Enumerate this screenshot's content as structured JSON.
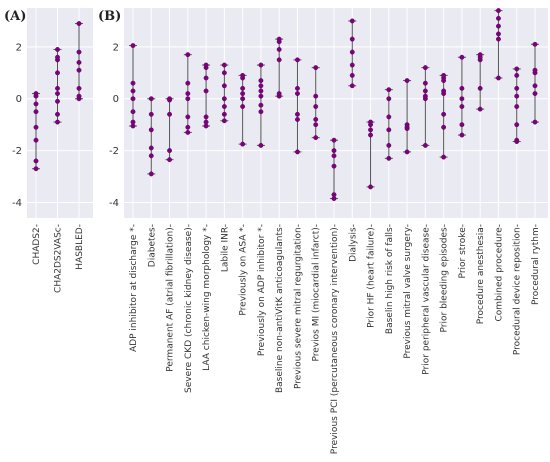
{
  "chart_data": [
    {
      "type": "scatter",
      "panel_label": "(A)",
      "ylim": [
        -4.6,
        3.5
      ],
      "yticks": [
        -4,
        -2,
        0,
        2
      ],
      "grid": true,
      "categories": [
        "CHADS2",
        "CHA2DS2VASc",
        "HASBLED"
      ],
      "series": [
        {
          "values": [
            [
              -2.7,
              -2.4,
              -1.6,
              -1.1,
              -0.5,
              -0.2,
              0.1,
              0.2
            ]
          ]
        },
        {
          "values": [
            [
              -0.9,
              -0.6,
              -0.1,
              0.2,
              0.4,
              1.0,
              1.5,
              1.6,
              1.9
            ]
          ]
        },
        {
          "values": [
            [
              0.0,
              0.1,
              0.4,
              1.1,
              1.4,
              1.8,
              2.9
            ]
          ]
        }
      ]
    },
    {
      "type": "scatter",
      "panel_label": "(B)",
      "ylim": [
        -4.6,
        3.5
      ],
      "yticks": [
        -4,
        -2,
        0,
        2
      ],
      "grid": true,
      "categories": [
        "ADP inhibitor at discharge *",
        "Diabetes",
        "Permanent AF (atrial fibrillation)",
        "Severe CKD (chronic kidney disease)",
        "LAA chicken-wing morphology *",
        "Labile INR",
        "Previously on ASA *",
        "Previously on ADP inhibitor *",
        "Baseline non-antiVitK anticoagulants",
        "Previous severe mitral regurgitation",
        "Previos MI (miocardial infarct)",
        "Previous PCI (percutaneous coronary intervention)",
        "Dialysis",
        "Prior HF (heart failure)",
        "Baselin high risk of falls",
        "Previous mitral valve surgery",
        "Prior peripheral vascular disease",
        "Prior bleeding episodes",
        "Prior stroke",
        "Procedure anesthesia",
        "Combined procedure",
        "Procedural device reposition",
        "Procedural rythm"
      ],
      "values": [
        [
          -1.05,
          -0.9,
          -0.5,
          0.0,
          0.3,
          0.6,
          2.05
        ],
        [
          -2.9,
          -2.2,
          -1.9,
          -1.2,
          -0.6,
          0.0
        ],
        [
          -2.35,
          -2.0,
          -0.6,
          -0.05,
          0.0
        ],
        [
          -1.3,
          -1.1,
          -0.7,
          0.0,
          0.2,
          0.6,
          1.7
        ],
        [
          -1.05,
          -0.9,
          -0.7,
          0.3,
          0.8,
          1.2,
          1.3
        ],
        [
          -0.85,
          -0.6,
          -0.3,
          0.0,
          0.5,
          1.0,
          1.3
        ],
        [
          -1.75,
          -0.3,
          0.0,
          0.2,
          0.4,
          0.8,
          0.9
        ],
        [
          -1.8,
          -0.5,
          -0.25,
          0.1,
          0.3,
          0.5,
          0.7,
          1.3
        ],
        [
          0.1,
          0.2,
          1.5,
          1.9,
          2.2,
          2.3
        ],
        [
          -2.05,
          -0.8,
          -0.6,
          0.2,
          0.4,
          1.5
        ],
        [
          -1.5,
          -1.0,
          -0.8,
          -0.3,
          0.1,
          1.2
        ],
        [
          -3.85,
          -3.7,
          -2.6,
          -2.2,
          -2.0,
          -1.6
        ],
        [
          0.5,
          0.9,
          1.3,
          1.8,
          2.3,
          3.0
        ],
        [
          -3.4,
          -1.4,
          -1.2,
          -1.0,
          -0.9
        ],
        [
          -2.3,
          -1.8,
          -1.2,
          -0.7,
          0.0,
          0.35
        ],
        [
          -2.05,
          -1.15,
          -1.1,
          -1.0,
          0.7
        ],
        [
          -1.8,
          0.0,
          0.1,
          0.3,
          0.6,
          1.2
        ],
        [
          -2.25,
          -1.1,
          -0.6,
          0.2,
          0.3,
          0.7,
          0.8,
          0.9
        ],
        [
          -1.4,
          -1.0,
          -0.3,
          0.0,
          0.4,
          1.6
        ],
        [
          -0.4,
          0.4,
          1.5,
          1.6,
          1.7
        ],
        [
          0.8,
          2.3,
          2.5,
          2.8,
          3.1,
          3.4
        ],
        [
          -1.65,
          -1.6,
          -1.0,
          -0.3,
          0.1,
          0.4,
          0.9,
          1.15
        ],
        [
          -0.9,
          0.2,
          0.5,
          1.0,
          1.1,
          2.1
        ]
      ]
    }
  ]
}
